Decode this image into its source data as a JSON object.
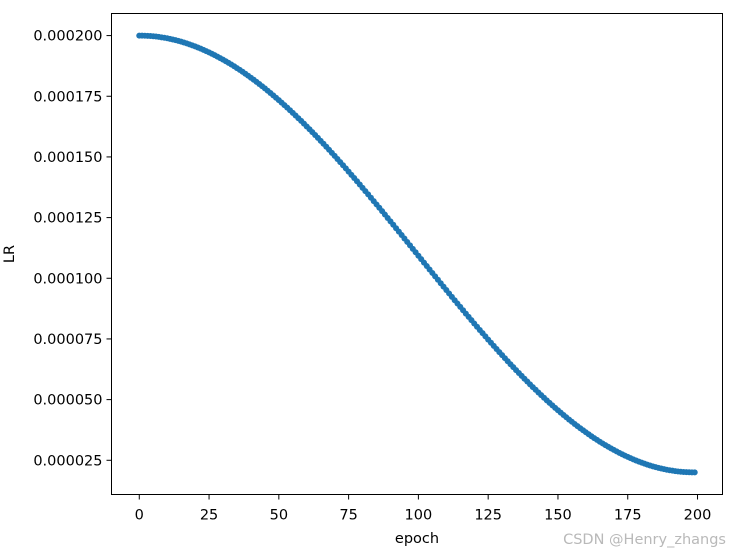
{
  "chart_data": {
    "type": "scatter",
    "xlabel": "epoch",
    "ylabel": "LR",
    "xlim": [
      -9.95,
      208.95
    ],
    "ylim": [
      1.09e-05,
      0.0002091
    ],
    "xticks": [
      0,
      25,
      50,
      75,
      100,
      125,
      150,
      175,
      200
    ],
    "yticks": [
      2.5e-05,
      5e-05,
      7.5e-05,
      0.0001,
      0.000125,
      0.00015,
      0.000175,
      0.0002
    ],
    "xtick_labels": [
      "0",
      "25",
      "50",
      "75",
      "100",
      "125",
      "150",
      "175",
      "200"
    ],
    "ytick_labels": [
      "0.000025",
      "0.000050",
      "0.000075",
      "0.000100",
      "0.000125",
      "0.000150",
      "0.000175",
      "0.000200"
    ],
    "grid": false,
    "series": [
      {
        "color": "#1f77b4",
        "marker": "dot",
        "point_count": 200,
        "x_range": [
          0,
          199
        ],
        "lr_max": 0.0002,
        "lr_min": 2e-05,
        "schedule": "cosine"
      }
    ]
  },
  "watermark": "CSDN @Henry_zhangs"
}
